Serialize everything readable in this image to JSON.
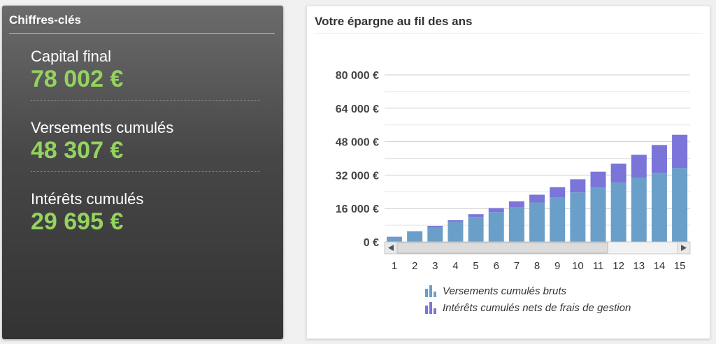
{
  "kpi": {
    "title": "Chiffres-clés",
    "items": [
      {
        "label": "Capital final",
        "value": "78 002 €"
      },
      {
        "label": "Versements cumulés",
        "value": "48 307 €"
      },
      {
        "label": "Intérêts cumulés",
        "value": "29 695 €"
      }
    ]
  },
  "chart": {
    "title": "Votre épargne au fil des ans"
  },
  "colors": {
    "versements": "#6a9fc9",
    "interets": "#7b74d9",
    "kpi_value": "#94d35f"
  },
  "chart_data": {
    "type": "bar",
    "stacked": true,
    "categories": [
      "1",
      "2",
      "3",
      "4",
      "5",
      "6",
      "7",
      "8",
      "9",
      "10",
      "11",
      "12",
      "13",
      "14",
      "15"
    ],
    "series": [
      {
        "name": "Versements cumulés bruts",
        "values": [
          2400,
          4800,
          7200,
          9600,
          12000,
          14300,
          16600,
          18900,
          21300,
          23700,
          26000,
          28400,
          30800,
          33100,
          35400
        ]
      },
      {
        "name": "Intérêts cumulés nets de frais de gestion",
        "values": [
          100,
          300,
          500,
          800,
          1300,
          1900,
          2800,
          3700,
          4900,
          6300,
          7600,
          9100,
          10900,
          13300,
          15900
        ]
      }
    ],
    "ytick_labels": [
      "0 €",
      "16 000 €",
      "32 000 €",
      "48 000 €",
      "64 000 €",
      "80 000 €"
    ],
    "ylim": [
      0,
      80000
    ],
    "grid": true,
    "legend_position": "bottom",
    "horizontal_scrollbar": true
  }
}
